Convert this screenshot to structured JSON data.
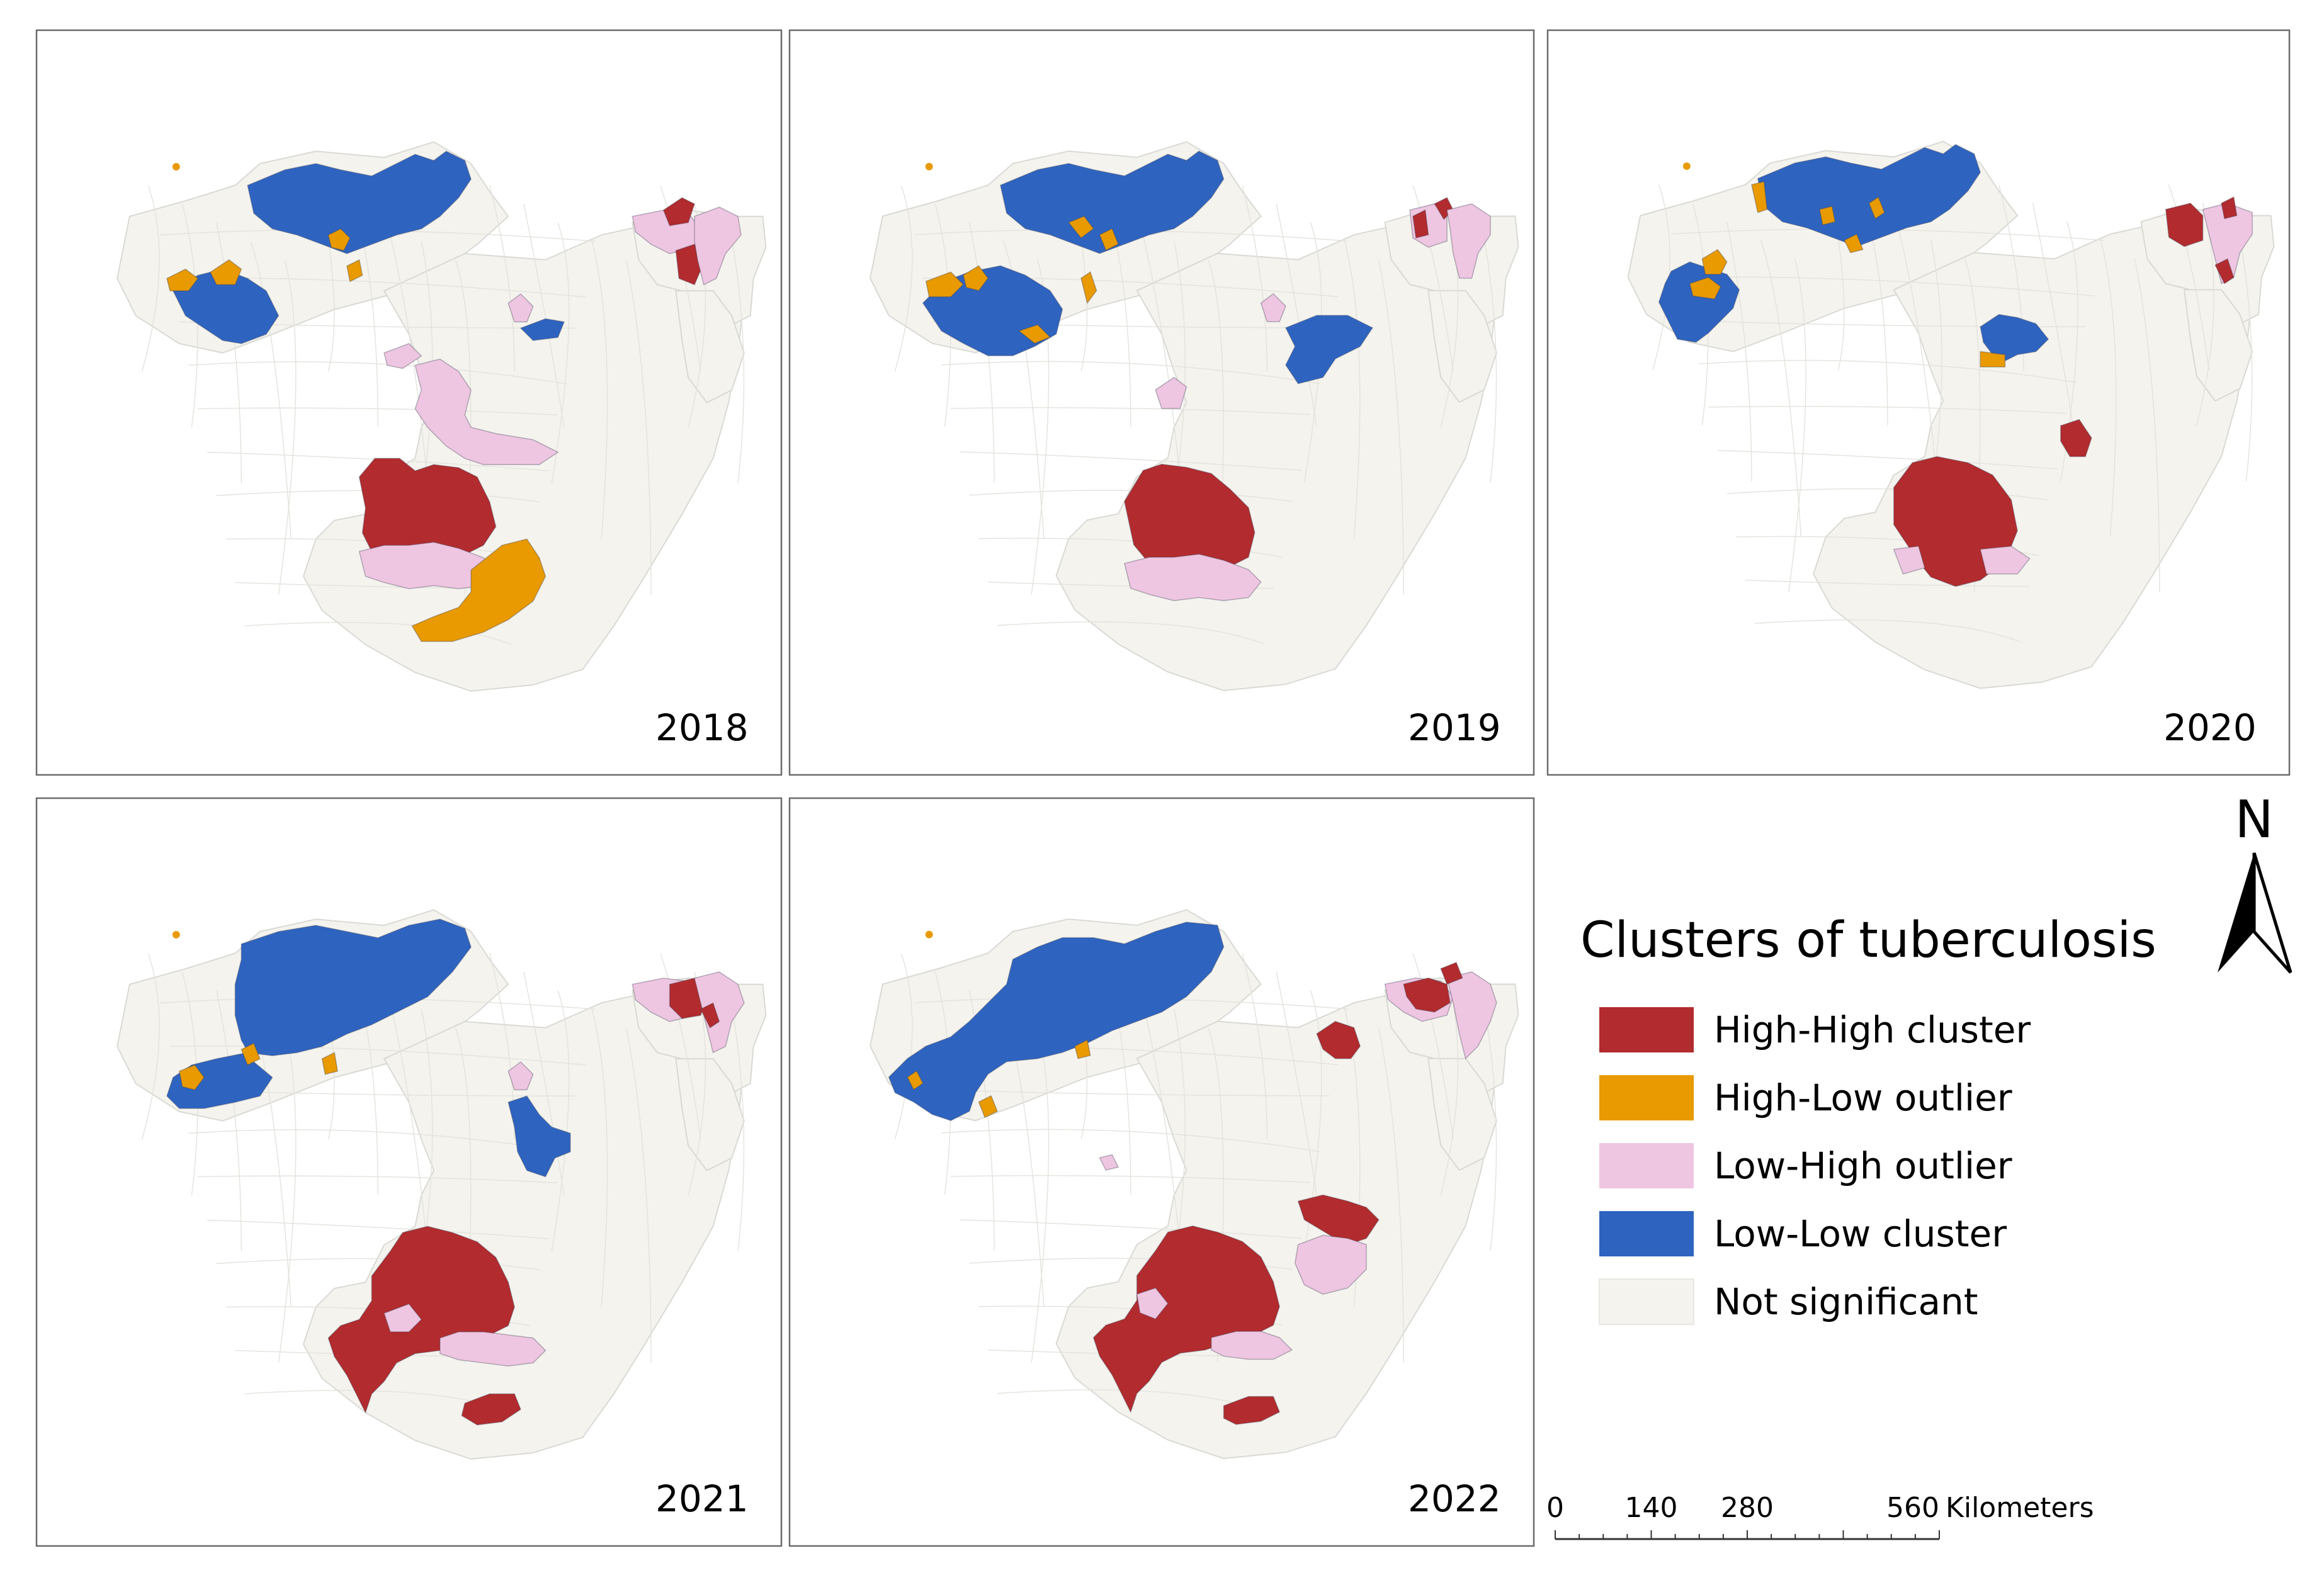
{
  "figure": {
    "legend_title": "Clusters of tuberculosis",
    "legend": [
      {
        "key": "HH",
        "label": "High-High cluster",
        "color": "#B22B2E"
      },
      {
        "key": "HL",
        "label": "High-Low outlier",
        "color": "#E89A00"
      },
      {
        "key": "LH",
        "label": "Low-High outlier",
        "color": "#EEC6E2"
      },
      {
        "key": "LL",
        "label": "Low-Low cluster",
        "color": "#2E64C0"
      },
      {
        "key": "NS",
        "label": "Not significant",
        "color": "#F4F3EE"
      }
    ],
    "north_arrow": "N",
    "scale": {
      "ticks": [
        "0",
        "140",
        "280",
        "560"
      ],
      "unit": "Kilometers"
    },
    "panels": [
      {
        "year": "2018"
      },
      {
        "year": "2019"
      },
      {
        "year": "2020"
      },
      {
        "year": "2021"
      },
      {
        "year": "2022"
      }
    ]
  }
}
